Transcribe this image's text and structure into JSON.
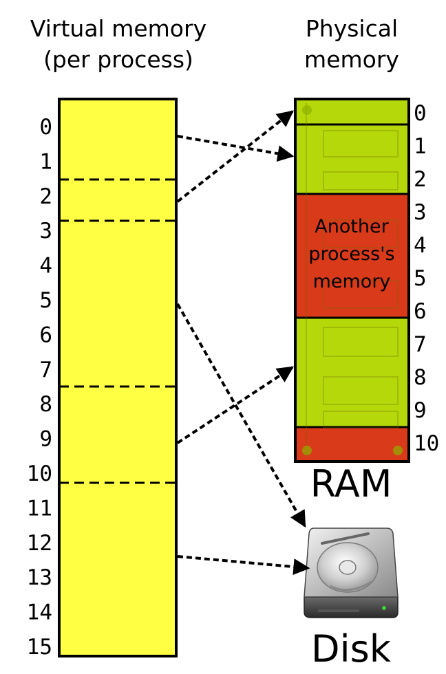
{
  "virtual": {
    "title_line1": "Virtual memory",
    "title_line2": "(per process)",
    "rows": [
      "0",
      "1",
      "2",
      "3",
      "4",
      "5",
      "6",
      "7",
      "8",
      "9",
      "10",
      "11",
      "12",
      "13",
      "14",
      "15"
    ],
    "fill_color": "#ffff44"
  },
  "physical": {
    "title_line1": "Physical",
    "title_line2": "memory",
    "rows": [
      "0",
      "1",
      "2",
      "3",
      "4",
      "5",
      "6",
      "7",
      "8",
      "9",
      "10"
    ],
    "label": "RAM",
    "other_line1": "Another",
    "other_line2": "process's",
    "other_line3": "memory",
    "free_color": "#b5d80a",
    "used_color": "#d93a1a"
  },
  "disk": {
    "label": "Disk",
    "icon": "hard-disk-icon"
  }
}
